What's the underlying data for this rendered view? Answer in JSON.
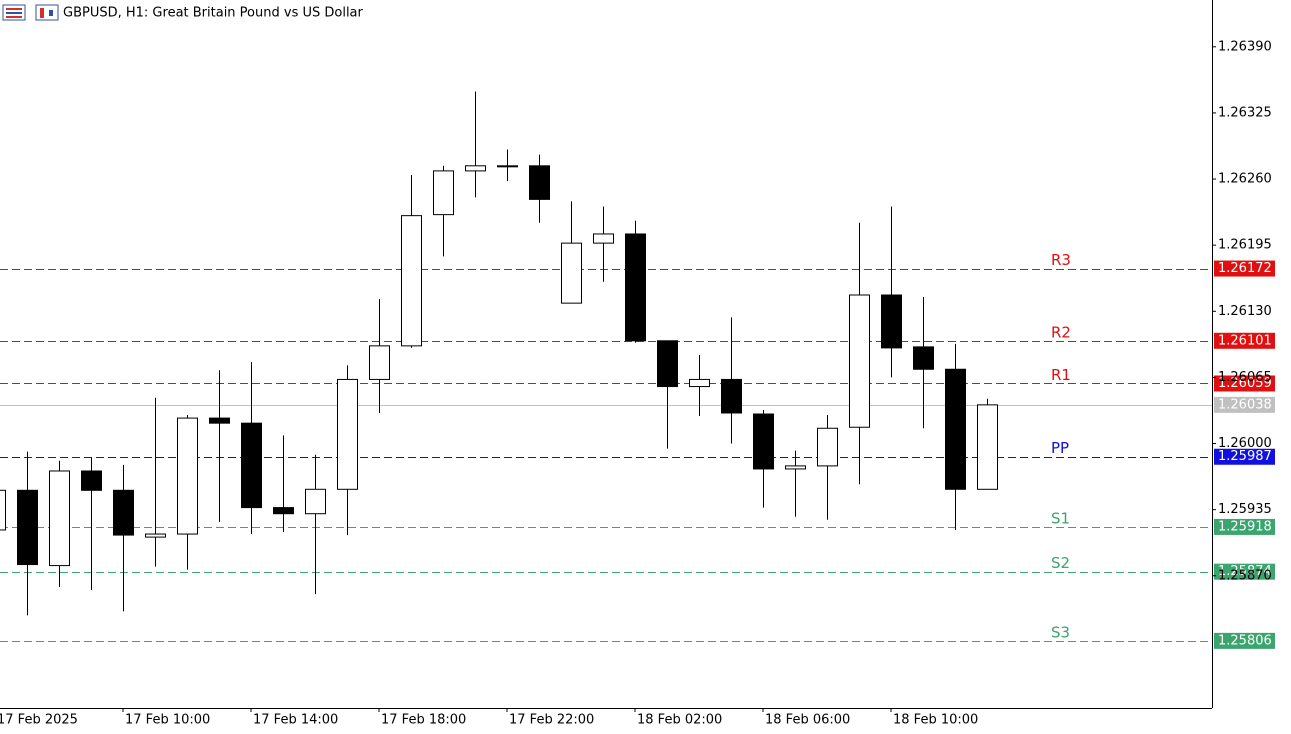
{
  "header": {
    "title": "GBPUSD, H1:  Great Britain Pound vs US Dollar"
  },
  "chart_data": {
    "type": "candlestick",
    "categories": [
      "17 Feb 2025",
      null,
      null,
      null,
      "17 Feb 10:00",
      null,
      null,
      null,
      "17 Feb 14:00",
      null,
      null,
      null,
      "17 Feb 18:00",
      null,
      null,
      null,
      "17 Feb 22:00",
      null,
      null,
      null,
      "18 Feb 02:00",
      null,
      null,
      null,
      "18 Feb 06:00",
      null,
      null,
      null,
      "18 Feb 10:00",
      null,
      null,
      null
    ],
    "open": [
      1.25915,
      1.25954,
      1.2588,
      1.25973,
      1.25954,
      1.25908,
      1.25911,
      1.26025,
      1.2602,
      1.25937,
      1.25931,
      1.25955,
      1.26063,
      1.26096,
      1.26225,
      1.26268,
      1.26272,
      1.26273,
      1.26138,
      1.26197,
      1.26206,
      1.26101,
      1.26056,
      1.26063,
      1.26029,
      1.25975,
      1.25978,
      1.26016,
      1.26146,
      1.26095,
      1.26073,
      1.25955
    ],
    "high": [
      1.2596,
      1.25992,
      1.25983,
      1.25986,
      1.25979,
      1.26045,
      1.26028,
      1.26072,
      1.2608,
      1.26008,
      1.25989,
      1.26077,
      1.26142,
      1.26264,
      1.26273,
      1.26346,
      1.26289,
      1.26284,
      1.26238,
      1.26233,
      1.26219,
      1.26101,
      1.26087,
      1.26124,
      1.26033,
      1.25993,
      1.26028,
      1.26217,
      1.26233,
      1.26144,
      1.26098,
      1.26044
    ],
    "low": [
      1.2591,
      1.25831,
      1.25859,
      1.25856,
      1.25835,
      1.25879,
      1.25876,
      1.25923,
      1.25911,
      1.25913,
      1.25852,
      1.2591,
      1.2603,
      1.26094,
      1.26184,
      1.26242,
      1.26258,
      1.26217,
      1.26138,
      1.26159,
      1.26099,
      1.25995,
      1.26027,
      1.26,
      1.25937,
      1.25928,
      1.25925,
      1.2596,
      1.26065,
      1.26015,
      1.25915,
      1.25955
    ],
    "close": [
      1.25954,
      1.25881,
      1.25973,
      1.25954,
      1.2591,
      1.25911,
      1.26025,
      1.2602,
      1.25937,
      1.25931,
      1.25955,
      1.26063,
      1.26096,
      1.26224,
      1.26268,
      1.26273,
      1.26273,
      1.2624,
      1.26197,
      1.26206,
      1.26101,
      1.26056,
      1.26063,
      1.2603,
      1.25975,
      1.25978,
      1.26015,
      1.26146,
      1.26094,
      1.26073,
      1.25955,
      1.26038
    ],
    "up_color": "#ffffff",
    "down_color": "#000000",
    "ylim": [
      1.2574,
      1.26436
    ],
    "yticks": [
      {
        "value": 1.2639,
        "label": "1.26390"
      },
      1.26325,
      {
        "value": 1.2626,
        "label": "1.26260"
      },
      1.26195,
      {
        "value": 1.2613,
        "label": "1.26130"
      },
      1.26065,
      {
        "value": 1.26,
        "label": "1.26000"
      },
      1.25935,
      {
        "value": 1.2587,
        "label": "1.25870"
      }
    ],
    "levels": [
      {
        "name": "R3",
        "value": 1.26172,
        "color": "#e01010"
      },
      {
        "name": "R2",
        "value": 1.26101,
        "color": "#e01010"
      },
      {
        "name": "R1",
        "value": 1.26059,
        "color": "#e01010"
      },
      {
        "name": "PP",
        "value": 1.25987,
        "color": "#1010e0"
      },
      {
        "name": "S1",
        "value": 1.25918,
        "color": "#3ca56e"
      },
      {
        "name": "S2",
        "value": 1.25874,
        "color": "#3ca56e"
      },
      {
        "name": "S3",
        "value": 1.25806,
        "color": "#3ca56e"
      }
    ],
    "last_price": {
      "value": 1.26038,
      "color": "#c0c0c0"
    }
  }
}
